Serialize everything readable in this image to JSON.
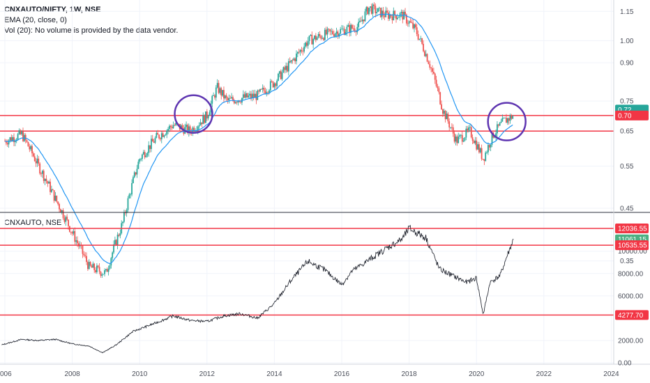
{
  "colors": {
    "up": "#26a69a",
    "down": "#ef5350",
    "ema": "#2196f3",
    "level_line": "#f23645",
    "circle": "#5e35b1",
    "bottom_line": "#131722",
    "ratio_tag": "#f23645",
    "ema_tag": "#26a69a",
    "price_last_tag": "#4caf82",
    "grid": "#f0f3fa"
  },
  "top_panel": {
    "symbol": "CNXAUTO/NIFTY, 1W, NSE",
    "ema_legend": "EMA (20, close, 0)",
    "vol_legend": "Vol (20): No volume is provided by the data vendor.",
    "y_ticks": [
      "1.15",
      "1.00",
      "0.90",
      "0.75",
      "0.65",
      "0.55",
      "0.45",
      "0.35"
    ],
    "scale": "log",
    "tags": {
      "ema_value": "0.72",
      "level": "0.70"
    }
  },
  "bottom_panel": {
    "symbol": "CNXAUTO, NSE",
    "y_ticks": [
      "10000.00",
      "8000.00",
      "6000.00",
      "2000.00",
      "0.00"
    ],
    "tags": {
      "top_level": "12036.55",
      "last": "11061.15",
      "mid_level": "10535.55",
      "low_level": "4277.70"
    }
  },
  "x_axis": {
    "ticks": [
      "006",
      "2008",
      "2010",
      "2012",
      "2014",
      "2016",
      "2018",
      "2020",
      "2022",
      "2024"
    ]
  },
  "chart_data": [
    {
      "type": "line",
      "title": "CNXAUTO/NIFTY, 1W, NSE",
      "x": [
        2006.0,
        2006.5,
        2007.0,
        2007.5,
        2008.0,
        2008.5,
        2009.0,
        2009.5,
        2010.0,
        2010.5,
        2011.0,
        2011.5,
        2012.0,
        2012.3,
        2012.6,
        2013.0,
        2013.5,
        2014.0,
        2014.5,
        2015.0,
        2015.5,
        2016.0,
        2016.5,
        2016.8,
        2017.3,
        2017.8,
        2018.2,
        2018.6,
        2019.0,
        2019.4,
        2019.8,
        2020.2,
        2020.5,
        2020.8,
        2021.1
      ],
      "series": [
        {
          "values": [
            0.62,
            0.64,
            0.55,
            0.47,
            0.4,
            0.34,
            0.33,
            0.42,
            0.57,
            0.63,
            0.67,
            0.65,
            0.7,
            0.8,
            0.75,
            0.76,
            0.77,
            0.82,
            0.9,
            1.0,
            1.03,
            1.05,
            1.07,
            1.17,
            1.13,
            1.13,
            1.05,
            0.9,
            0.72,
            0.62,
            0.65,
            0.57,
            0.64,
            0.68,
            0.7
          ]
        }
      ],
      "ema_period": 20,
      "levels": [
        0.7,
        0.65
      ],
      "ylim": [
        0.3,
        1.2
      ]
    },
    {
      "type": "line",
      "title": "CNXAUTO, NSE",
      "x": [
        2005.9,
        2006.5,
        2007.0,
        2007.5,
        2008.0,
        2008.5,
        2008.9,
        2009.3,
        2009.8,
        2010.5,
        2011.0,
        2011.5,
        2012.0,
        2012.5,
        2013.0,
        2013.5,
        2014.0,
        2014.5,
        2015.0,
        2015.5,
        2016.0,
        2016.3,
        2016.8,
        2017.3,
        2017.8,
        2018.0,
        2018.5,
        2018.9,
        2019.3,
        2019.7,
        2020.0,
        2020.2,
        2020.4,
        2020.7,
        2020.9,
        2021.1
      ],
      "series": [
        {
          "values": [
            1600,
            2100,
            2000,
            2100,
            1700,
            1500,
            900,
            1600,
            2800,
            3600,
            4200,
            3800,
            3700,
            4200,
            4400,
            4000,
            5300,
            7400,
            9100,
            8300,
            7000,
            8200,
            9200,
            10200,
            11100,
            12036,
            11200,
            8400,
            7800,
            7200,
            7600,
            4300,
            7200,
            7800,
            9500,
            11061
          ]
        }
      ],
      "levels": [
        12036.55,
        10535.55,
        4277.7
      ],
      "ylim": [
        0,
        12500
      ]
    }
  ]
}
